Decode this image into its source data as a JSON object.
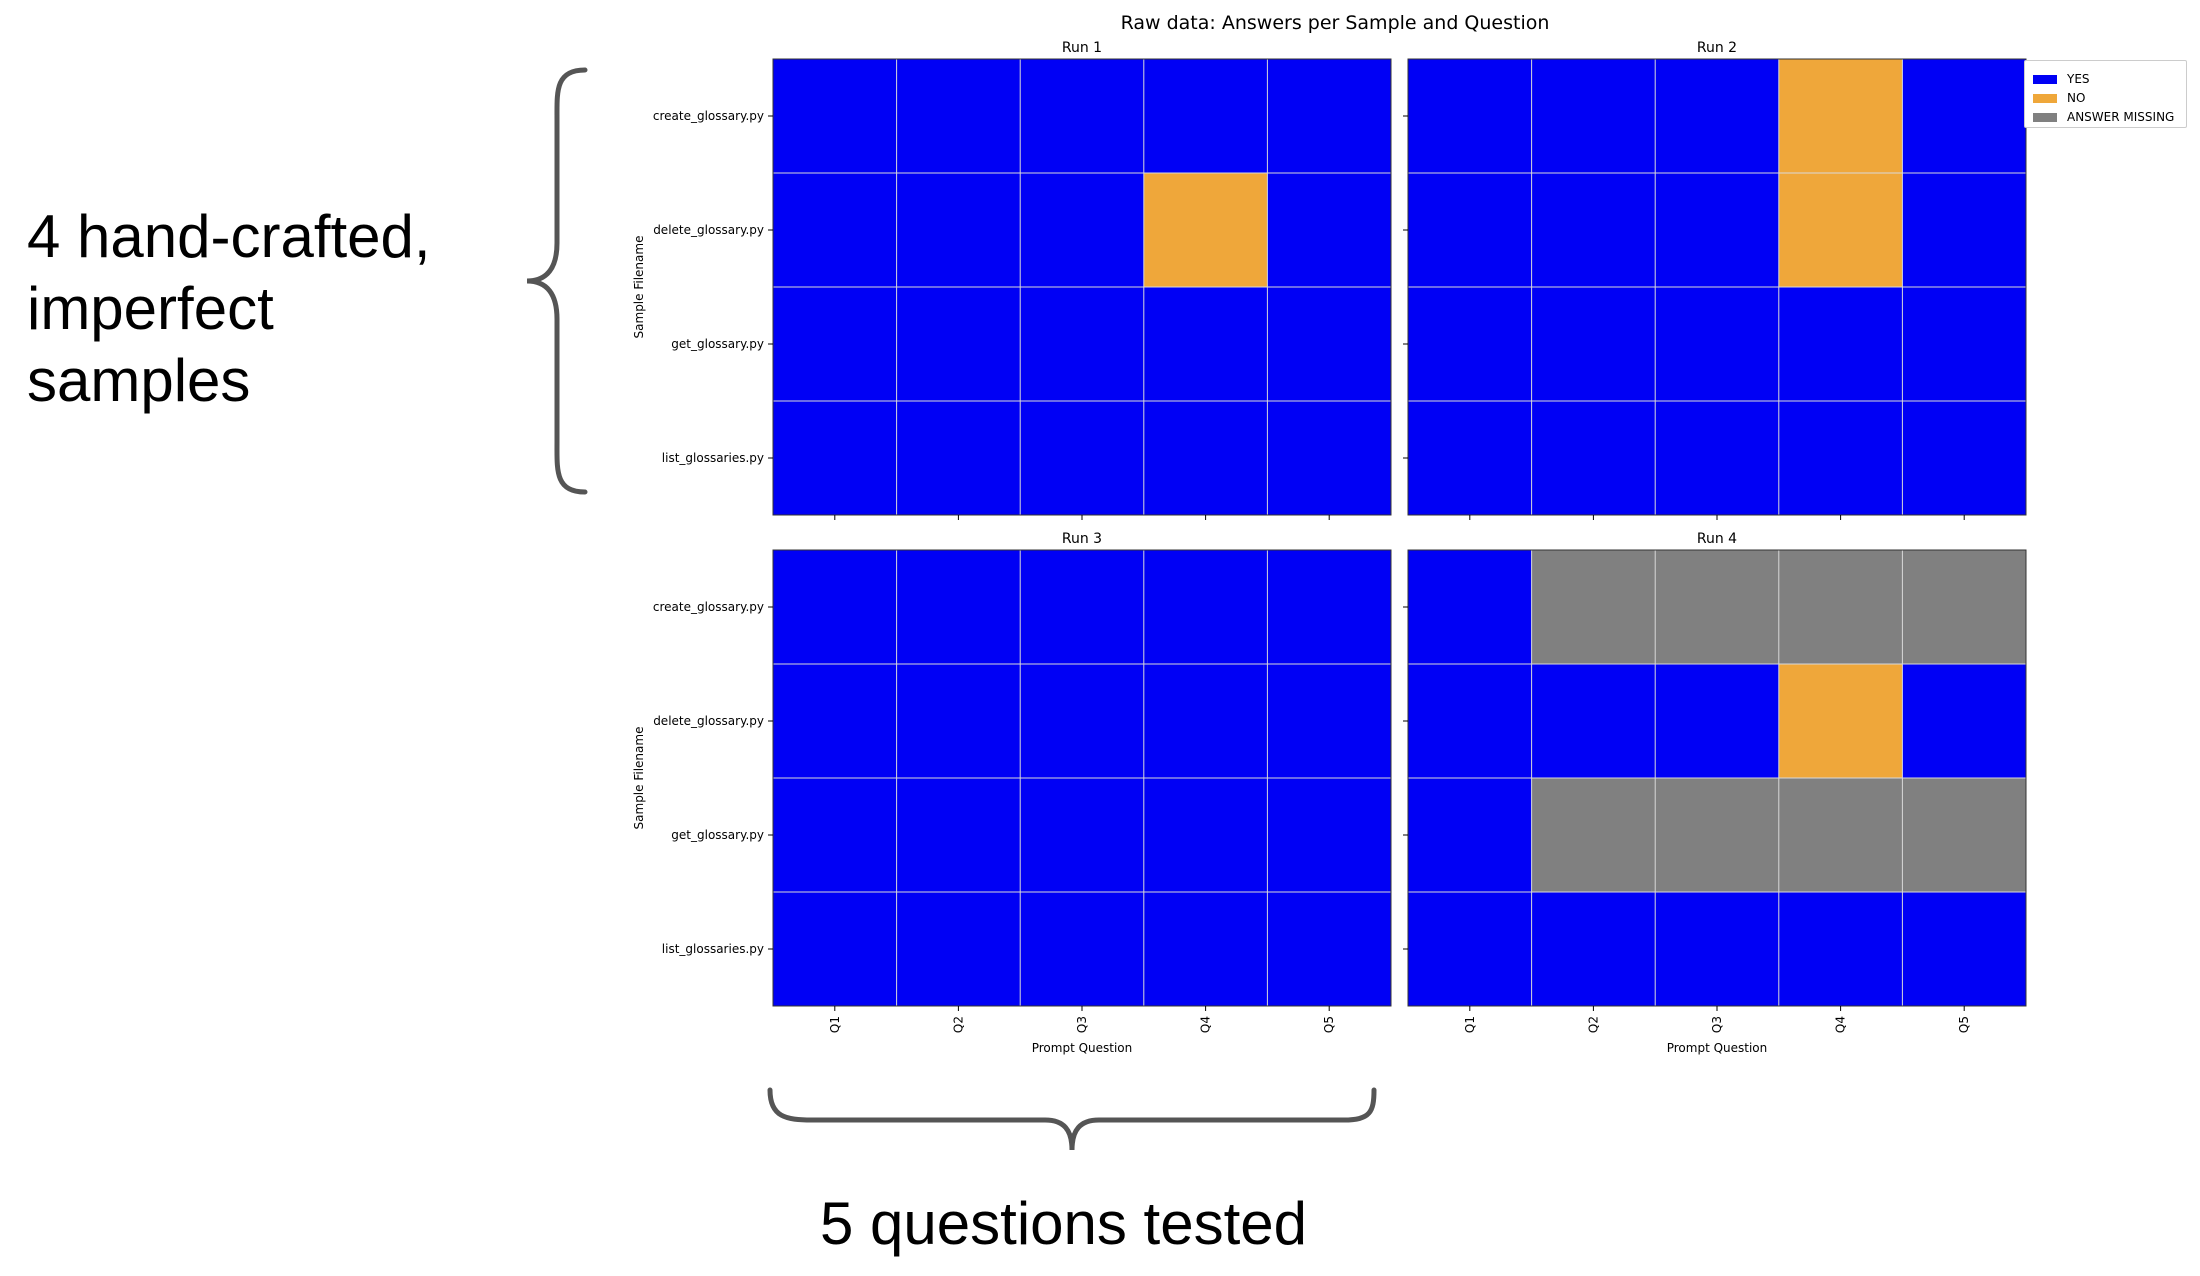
{
  "annotations": {
    "left_line1": "4 hand-crafted,",
    "left_line2": "imperfect",
    "left_line3": "samples",
    "bottom": "5 questions tested"
  },
  "colors": {
    "yes": "#0000F5",
    "no": "#EFA73A",
    "missing": "#808080",
    "grid": "#D9D9D9",
    "brace": "#555555"
  },
  "chart_data": {
    "type": "heatmap",
    "title": "Raw data: Answers per Sample and Question",
    "xlabel": "Prompt Question",
    "ylabel": "Sample Filename",
    "x_categories": [
      "Q1",
      "Q2",
      "Q3",
      "Q4",
      "Q5"
    ],
    "y_categories": [
      "create_glossary.py",
      "delete_glossary.py",
      "get_glossary.py",
      "list_glossaries.py"
    ],
    "legend": {
      "placement": "upper right, outside plot",
      "entries": [
        {
          "label": "YES",
          "color": "#0000F5"
        },
        {
          "label": "NO",
          "color": "#EFA73A"
        },
        {
          "label": "ANSWER MISSING",
          "color": "#808080"
        }
      ]
    },
    "panels": [
      {
        "title": "Run 1",
        "values": [
          [
            "YES",
            "YES",
            "YES",
            "YES",
            "YES"
          ],
          [
            "YES",
            "YES",
            "YES",
            "NO",
            "YES"
          ],
          [
            "YES",
            "YES",
            "YES",
            "YES",
            "YES"
          ],
          [
            "YES",
            "YES",
            "YES",
            "YES",
            "YES"
          ]
        ]
      },
      {
        "title": "Run 2",
        "values": [
          [
            "YES",
            "YES",
            "YES",
            "NO",
            "YES"
          ],
          [
            "YES",
            "YES",
            "YES",
            "NO",
            "YES"
          ],
          [
            "YES",
            "YES",
            "YES",
            "YES",
            "YES"
          ],
          [
            "YES",
            "YES",
            "YES",
            "YES",
            "YES"
          ]
        ]
      },
      {
        "title": "Run 3",
        "values": [
          [
            "YES",
            "YES",
            "YES",
            "YES",
            "YES"
          ],
          [
            "YES",
            "YES",
            "YES",
            "YES",
            "YES"
          ],
          [
            "YES",
            "YES",
            "YES",
            "YES",
            "YES"
          ],
          [
            "YES",
            "YES",
            "YES",
            "YES",
            "YES"
          ]
        ]
      },
      {
        "title": "Run 4",
        "values": [
          [
            "YES",
            "ANSWER MISSING",
            "ANSWER MISSING",
            "ANSWER MISSING",
            "ANSWER MISSING"
          ],
          [
            "YES",
            "YES",
            "YES",
            "NO",
            "YES"
          ],
          [
            "YES",
            "ANSWER MISSING",
            "ANSWER MISSING",
            "ANSWER MISSING",
            "ANSWER MISSING"
          ],
          [
            "YES",
            "YES",
            "YES",
            "YES",
            "YES"
          ]
        ]
      }
    ]
  }
}
